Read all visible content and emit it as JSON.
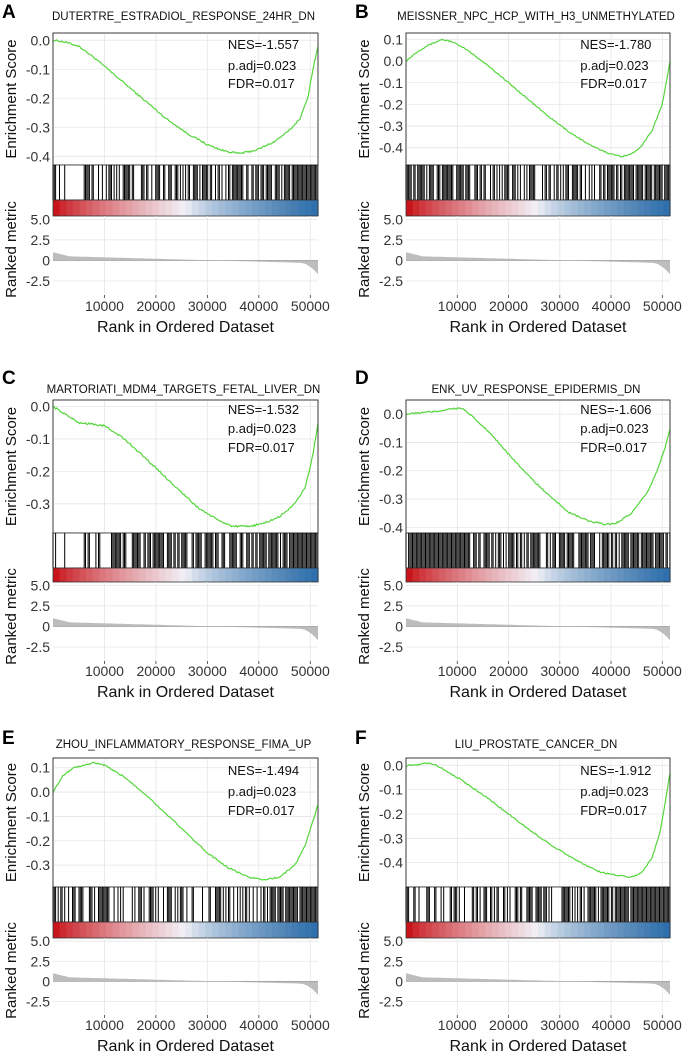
{
  "figure": {
    "common": {
      "ylabel_es": "Enrichment Score",
      "ylabel_rm": "Ranked metric",
      "xlabel": "Rank in Ordered Dataset",
      "x_ticks": [
        10000,
        20000,
        30000,
        40000,
        50000
      ],
      "x_range": [
        0,
        51500
      ],
      "rm_ticks": [
        "5.0",
        "2.5",
        "0",
        "-2.5"
      ],
      "rm_tick_values": [
        5.0,
        2.5,
        0,
        -2.5
      ],
      "rm_range": [
        -4.2,
        5.4
      ],
      "colors": {
        "curve": "#55d63c",
        "hits": "#000000",
        "red": "#c8151b",
        "white": "#f2f2f7",
        "blue": "#2f6fab",
        "grid": "#e6e6e6",
        "metric": "#bdbdbd"
      }
    }
  },
  "chart_data": [
    {
      "panel_letter": "A",
      "type": "line",
      "title": "DUTERTRE_ESTRADIOL_RESPONSE_24HR_DN",
      "stats": {
        "nes": "NES=-1.557",
        "padj": "p.adj=0.023",
        "fdr": "FDR=0.017"
      },
      "y_ticks": [
        "0.0",
        "-0.1",
        "-0.2",
        "-0.3",
        "-0.4"
      ],
      "y_tick_values": [
        0.0,
        -0.1,
        -0.2,
        -0.3,
        -0.4
      ],
      "ylim": [
        -0.43,
        0.025
      ],
      "curve": [
        [
          0,
          0.0
        ],
        [
          2000,
          -0.005
        ],
        [
          5000,
          -0.02
        ],
        [
          8000,
          -0.06
        ],
        [
          10000,
          -0.09
        ],
        [
          14000,
          -0.15
        ],
        [
          18000,
          -0.21
        ],
        [
          22000,
          -0.27
        ],
        [
          26000,
          -0.32
        ],
        [
          30000,
          -0.36
        ],
        [
          33000,
          -0.38
        ],
        [
          36000,
          -0.39
        ],
        [
          38000,
          -0.385
        ],
        [
          40000,
          -0.375
        ],
        [
          43000,
          -0.35
        ],
        [
          46000,
          -0.31
        ],
        [
          48000,
          -0.27
        ],
        [
          49500,
          -0.2
        ],
        [
          50500,
          -0.1
        ],
        [
          51500,
          -0.02
        ]
      ],
      "hit_density": [
        0.35,
        0.5,
        0.5,
        0.45,
        0.55,
        0.45,
        0.6,
        0.7,
        0.8,
        0.95
      ]
    },
    {
      "panel_letter": "B",
      "type": "line",
      "title": "MEISSNER_NPC_HCP_WITH_H3_UNMETHYLATED",
      "stats": {
        "nes": "NES=-1.780",
        "padj": "p.adj=0.023",
        "fdr": "FDR=0.017"
      },
      "y_ticks": [
        "0.1",
        "0.0",
        "-0.1",
        "-0.2",
        "-0.3",
        "-0.4"
      ],
      "y_tick_values": [
        0.1,
        0.0,
        -0.1,
        -0.2,
        -0.3,
        -0.4
      ],
      "ylim": [
        -0.48,
        0.13
      ],
      "curve": [
        [
          0,
          0.0
        ],
        [
          2000,
          0.04
        ],
        [
          4000,
          0.07
        ],
        [
          6000,
          0.09
        ],
        [
          7000,
          0.1
        ],
        [
          9000,
          0.09
        ],
        [
          12000,
          0.05
        ],
        [
          16000,
          -0.02
        ],
        [
          20000,
          -0.1
        ],
        [
          24000,
          -0.18
        ],
        [
          28000,
          -0.26
        ],
        [
          32000,
          -0.33
        ],
        [
          36000,
          -0.39
        ],
        [
          40000,
          -0.43
        ],
        [
          42000,
          -0.44
        ],
        [
          44000,
          -0.43
        ],
        [
          46000,
          -0.39
        ],
        [
          48000,
          -0.32
        ],
        [
          50000,
          -0.2
        ],
        [
          51500,
          0.0
        ]
      ],
      "hit_density": [
        0.8,
        0.75,
        0.7,
        0.65,
        0.6,
        0.5,
        0.55,
        0.6,
        0.75,
        0.85
      ]
    },
    {
      "panel_letter": "C",
      "type": "line",
      "title": "MARTORIATI_MDM4_TARGETS_FETAL_LIVER_DN",
      "stats": {
        "nes": "NES=-1.532",
        "padj": "p.adj=0.023",
        "fdr": "FDR=0.017"
      },
      "y_ticks": [
        "0.0",
        "-0.1",
        "-0.2",
        "-0.3"
      ],
      "y_tick_values": [
        0.0,
        -0.1,
        -0.2,
        -0.3
      ],
      "ylim": [
        -0.39,
        0.02
      ],
      "curve": [
        [
          0,
          0.0
        ],
        [
          3000,
          -0.03
        ],
        [
          5000,
          -0.05
        ],
        [
          8000,
          -0.055
        ],
        [
          10000,
          -0.06
        ],
        [
          13000,
          -0.09
        ],
        [
          16000,
          -0.13
        ],
        [
          20000,
          -0.19
        ],
        [
          24000,
          -0.25
        ],
        [
          28000,
          -0.31
        ],
        [
          32000,
          -0.35
        ],
        [
          35000,
          -0.37
        ],
        [
          38000,
          -0.37
        ],
        [
          41000,
          -0.36
        ],
        [
          44000,
          -0.34
        ],
        [
          47000,
          -0.3
        ],
        [
          49000,
          -0.25
        ],
        [
          50500,
          -0.15
        ],
        [
          51500,
          -0.05
        ]
      ],
      "hit_density": [
        0.2,
        0.5,
        0.55,
        0.6,
        0.6,
        0.65,
        0.7,
        0.75,
        0.8,
        0.9
      ]
    },
    {
      "panel_letter": "D",
      "type": "line",
      "title": "ENK_UV_RESPONSE_EPIDERMIS_DN",
      "stats": {
        "nes": "NES=-1.606",
        "padj": "p.adj=0.023",
        "fdr": "FDR=0.017"
      },
      "y_ticks": [
        "0.0",
        "-0.1",
        "-0.2",
        "-0.3",
        "-0.4"
      ],
      "y_tick_values": [
        0.0,
        -0.1,
        -0.2,
        -0.3,
        -0.4
      ],
      "ylim": [
        -0.42,
        0.05
      ],
      "curve": [
        [
          0,
          0.0
        ],
        [
          3000,
          0.005
        ],
        [
          6000,
          0.01
        ],
        [
          9000,
          0.02
        ],
        [
          11000,
          0.02
        ],
        [
          13000,
          -0.01
        ],
        [
          16000,
          -0.06
        ],
        [
          20000,
          -0.14
        ],
        [
          24000,
          -0.22
        ],
        [
          28000,
          -0.29
        ],
        [
          32000,
          -0.35
        ],
        [
          36000,
          -0.38
        ],
        [
          39000,
          -0.39
        ],
        [
          41000,
          -0.385
        ],
        [
          44000,
          -0.35
        ],
        [
          47000,
          -0.28
        ],
        [
          49000,
          -0.2
        ],
        [
          50500,
          -0.12
        ],
        [
          51500,
          -0.05
        ]
      ],
      "hit_density": [
        0.85,
        0.8,
        0.75,
        0.7,
        0.65,
        0.65,
        0.7,
        0.75,
        0.8,
        0.85
      ]
    },
    {
      "panel_letter": "E",
      "type": "line",
      "title": "ZHOU_INFLAMMATORY_RESPONSE_FIMA_UP",
      "stats": {
        "nes": "NES=-1.494",
        "padj": "p.adj=0.023",
        "fdr": "FDR=0.017"
      },
      "y_ticks": [
        "0.1",
        "0.0",
        "-0.1",
        "-0.2",
        "-0.3"
      ],
      "y_tick_values": [
        0.1,
        0.0,
        -0.1,
        -0.2,
        -0.3
      ],
      "ylim": [
        -0.39,
        0.14
      ],
      "curve": [
        [
          0,
          0.0
        ],
        [
          2000,
          0.07
        ],
        [
          4000,
          0.1
        ],
        [
          6000,
          0.11
        ],
        [
          8000,
          0.12
        ],
        [
          10000,
          0.11
        ],
        [
          14000,
          0.06
        ],
        [
          18000,
          -0.01
        ],
        [
          22000,
          -0.09
        ],
        [
          26000,
          -0.17
        ],
        [
          30000,
          -0.25
        ],
        [
          34000,
          -0.31
        ],
        [
          38000,
          -0.35
        ],
        [
          41000,
          -0.36
        ],
        [
          44000,
          -0.35
        ],
        [
          47000,
          -0.3
        ],
        [
          49000,
          -0.22
        ],
        [
          50500,
          -0.12
        ],
        [
          51500,
          -0.05
        ]
      ],
      "hit_density": [
        0.55,
        0.5,
        0.5,
        0.45,
        0.55,
        0.5,
        0.55,
        0.6,
        0.85,
        0.95
      ]
    },
    {
      "panel_letter": "F",
      "type": "line",
      "title": "LIU_PROSTATE_CANCER_DN",
      "stats": {
        "nes": "NES=-1.912",
        "padj": "p.adj=0.023",
        "fdr": "FDR=0.017"
      },
      "y_ticks": [
        "0.0",
        "-0.1",
        "-0.2",
        "-0.3",
        "-0.4"
      ],
      "y_tick_values": [
        0.0,
        -0.1,
        -0.2,
        -0.3,
        -0.4
      ],
      "ylim": [
        -0.5,
        0.03
      ],
      "curve": [
        [
          0,
          0.0
        ],
        [
          2000,
          0.0
        ],
        [
          4000,
          0.01
        ],
        [
          6000,
          0.0
        ],
        [
          10000,
          -0.05
        ],
        [
          15000,
          -0.12
        ],
        [
          20000,
          -0.2
        ],
        [
          25000,
          -0.28
        ],
        [
          30000,
          -0.35
        ],
        [
          35000,
          -0.41
        ],
        [
          38000,
          -0.44
        ],
        [
          41000,
          -0.45
        ],
        [
          44000,
          -0.46
        ],
        [
          46000,
          -0.44
        ],
        [
          48000,
          -0.38
        ],
        [
          49500,
          -0.28
        ],
        [
          50500,
          -0.16
        ],
        [
          51500,
          -0.03
        ]
      ],
      "hit_density": [
        0.4,
        0.45,
        0.5,
        0.5,
        0.55,
        0.45,
        0.5,
        0.55,
        0.9,
        1.0
      ]
    }
  ]
}
